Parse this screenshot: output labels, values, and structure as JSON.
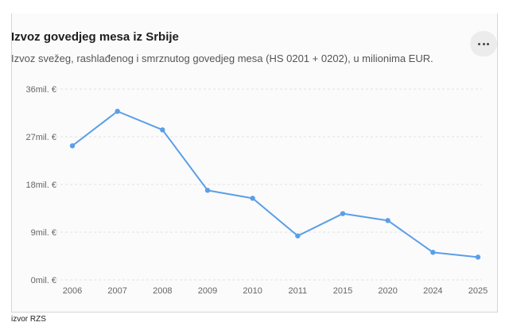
{
  "header": {
    "title": "Izvoz govedjeg mesa iz Srbije",
    "subtitle": "Izvoz svežeg, rashlađenog i smrznutog govedjeg mesa (HS 0201 + 0202), u milionima EUR.",
    "menu_icon": "more-horizontal-icon"
  },
  "source": "izvor RZS",
  "chart_data": {
    "type": "line",
    "categories": [
      "2006",
      "2007",
      "2008",
      "2009",
      "2010",
      "2011",
      "2015",
      "2020",
      "2024",
      "2025"
    ],
    "series": [
      {
        "values": [
          25.3,
          31.8,
          28.3,
          16.9,
          15.4,
          8.3,
          12.5,
          11.2,
          5.2,
          4.3
        ]
      }
    ],
    "yticks": [
      0,
      9,
      18,
      27,
      36
    ],
    "ytick_labels": [
      "0mil. €",
      "9mil. €",
      "18mil. €",
      "27mil. €",
      "36mil. €"
    ],
    "ylim": [
      0,
      36
    ],
    "grid": true,
    "line_color": "#5b9ee8",
    "grid_color": "#e2e2e2"
  }
}
